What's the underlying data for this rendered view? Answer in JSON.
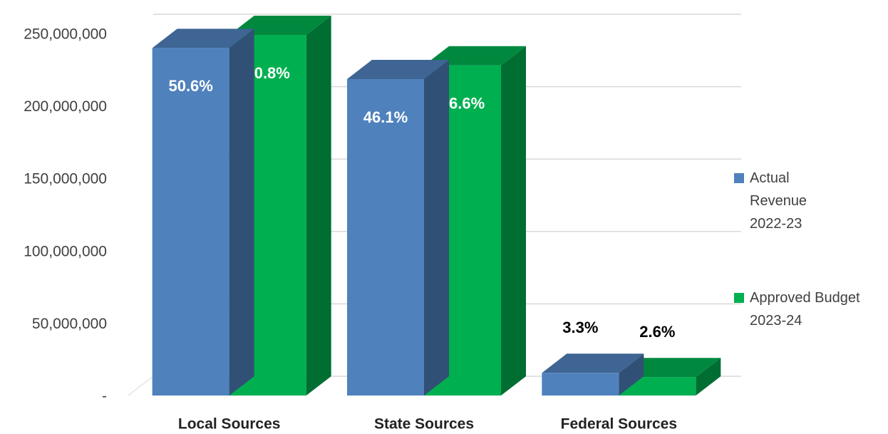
{
  "chart_data": {
    "type": "bar3d",
    "categories": [
      "Local Sources",
      "State Sources",
      "Federal Sources"
    ],
    "series": [
      {
        "name": "Actual Revenue 2022-23",
        "color": "#4f81bd",
        "values": [
          240000000,
          218500000,
          15600000
        ],
        "share_labels": [
          "50.6%",
          "46.1%",
          "3.3%"
        ]
      },
      {
        "name": "Approved Budget 2023-24",
        "color": "#00b050",
        "values": [
          249000000,
          228000000,
          12700000
        ],
        "share_labels": [
          "50.8%",
          "46.6%",
          "2.6%"
        ]
      }
    ],
    "ylim": [
      0,
      250000000
    ],
    "yticks": [
      {
        "value": 0,
        "label": "-"
      },
      {
        "value": 50000000,
        "label": "50,000,000"
      },
      {
        "value": 100000000,
        "label": "100,000,000"
      },
      {
        "value": 150000000,
        "label": "150,000,000"
      },
      {
        "value": 200000000,
        "label": "200,000,000"
      },
      {
        "value": 250000000,
        "label": "250,000,000"
      }
    ],
    "grid": true,
    "legend": "right"
  }
}
